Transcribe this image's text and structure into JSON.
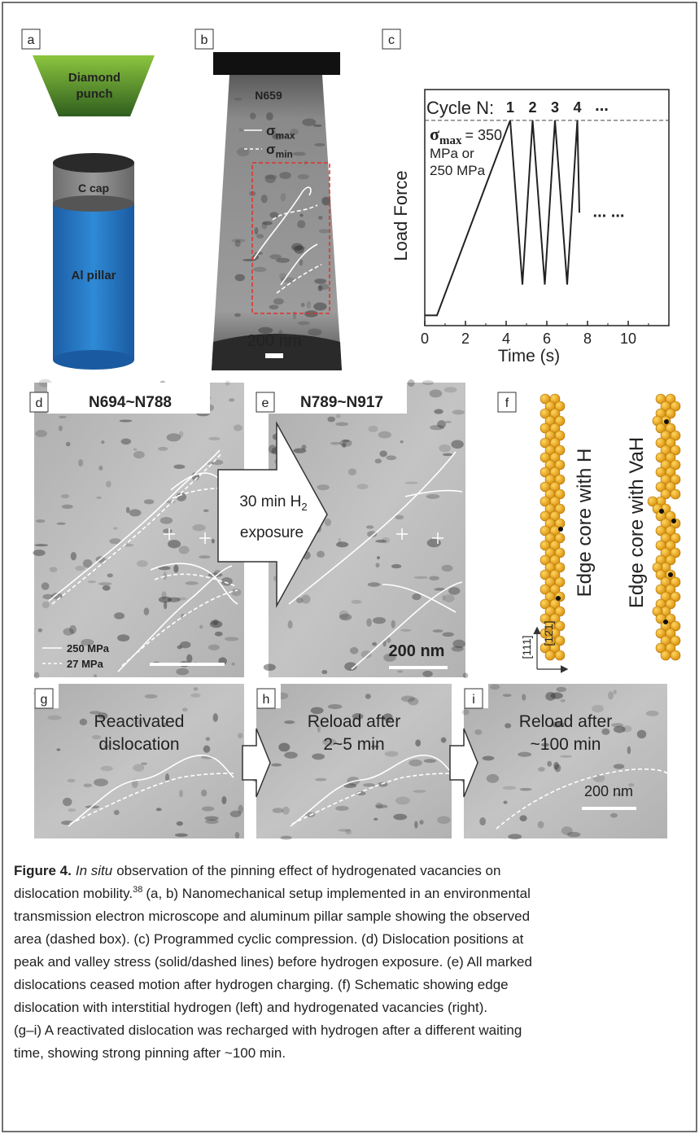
{
  "panels": {
    "a": {
      "label": "a",
      "punch": [
        "Diamond",
        "punch"
      ],
      "cap": "C cap",
      "pillar": "Al pillar"
    },
    "b": {
      "label": "b",
      "cycle": "N659",
      "legend": [
        {
          "symbol": "σ",
          "sub": "max"
        },
        {
          "symbol": "σ",
          "sub": "min"
        }
      ],
      "scale": "200 nm"
    },
    "c": {
      "label": "c"
    },
    "d": {
      "label": "d",
      "cycles": "N694~N788",
      "legend": [
        "250 MPa",
        "27 MPa"
      ]
    },
    "arrow": {
      "line1": "30 min H",
      "sub": "2",
      "line2": "exposure"
    },
    "e": {
      "label": "e",
      "cycles": "N789~N917",
      "scale": "200 nm"
    },
    "f": {
      "label": "f",
      "left": "Edge core with H",
      "right": "Edge core with VaH",
      "axis_vertical": "[111]",
      "axis_horizontal": "[12̄1]"
    },
    "g": {
      "label": "g",
      "lines": [
        "Reactivated",
        "dislocation"
      ]
    },
    "h": {
      "label": "h",
      "lines": [
        "Reload after",
        "2~5 min"
      ]
    },
    "i": {
      "label": "i",
      "lines": [
        "Reload after",
        "~100 min"
      ],
      "scale": "200 nm"
    }
  },
  "chart_data": {
    "type": "line",
    "xlabel": "Time (s)",
    "ylabel": "Load Force",
    "cycle_label": "Cycle N:",
    "cycles": [
      "1",
      "2",
      "3",
      "4"
    ],
    "cycle_more": "...",
    "continuation": "... ...",
    "annotation": {
      "symbol": "σ",
      "sub": "max",
      "lines": [
        "= 350",
        "MPa or",
        "250 MPa"
      ]
    },
    "x": [
      0,
      0.6,
      4.2,
      4.8,
      5.3,
      5.9,
      6.4,
      7.0,
      7.5,
      7.6
    ],
    "series": [
      {
        "color": "#222222",
        "values": [
          0.05,
          0.05,
          1,
          0.2,
          1,
          0.2,
          1,
          0.2,
          1,
          0.55
        ]
      }
    ],
    "xlim": [
      0,
      12
    ],
    "ylim": [
      0,
      1.15
    ],
    "xticks": [
      0,
      2,
      4,
      6,
      8,
      10
    ]
  },
  "caption": {
    "label": "Figure 4.",
    "emphasis": "In situ",
    "line1": "observation of the pinning effect of hydrogenated vacancies on",
    "line2a": "dislocation mobility.",
    "ref": "38",
    "line2b": "(a, b) Nanomechanical setup implemented in an environmental",
    "lines": [
      "transmission electron microscope and aluminum pillar sample showing the observed",
      "area (dashed box). (c) Programmed cyclic compression. (d) Dislocation positions at",
      "peak and valley stress (solid/dashed lines) before hydrogen exposure. (e) All marked",
      "dislocations ceased motion after hydrogen charging. (f) Schematic showing edge",
      "dislocation with interstitial hydrogen (left) and hydrogenated vacancies (right).",
      "(g–i) A reactivated dislocation was recharged with hydrogen after a different waiting",
      "time, showing strong pinning after ~100 min."
    ]
  }
}
